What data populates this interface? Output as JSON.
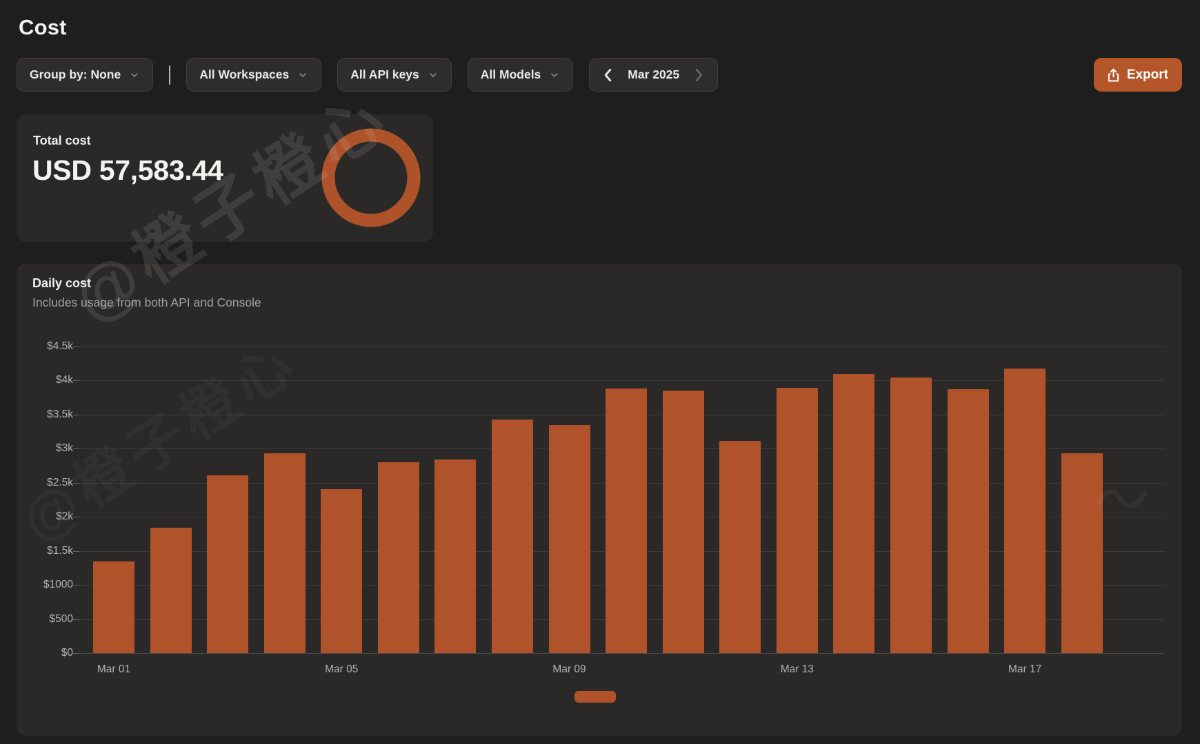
{
  "page": {
    "title": "Cost"
  },
  "toolbar": {
    "group_by": {
      "label": "Group by: None"
    },
    "filters": [
      {
        "label": "All Workspaces"
      },
      {
        "label": "All API keys"
      },
      {
        "label": "All Models"
      }
    ],
    "month_nav": {
      "label": "Mar 2025",
      "prev_enabled": true,
      "next_enabled": false
    },
    "export_label": "Export"
  },
  "total_cost": {
    "label": "Total cost",
    "value": "USD 57,583.44"
  },
  "daily_cost": {
    "title": "Daily cost",
    "subtitle": "Includes usage from both API and Console"
  },
  "watermark": {
    "text": "@橙子橙心"
  },
  "colors": {
    "background": "#1e1e1d",
    "card": "#2a2927",
    "accent_orange": "#b1532a",
    "export_orange": "#b4562a",
    "text_primary": "#f0efec",
    "text_secondary": "#a3a19c",
    "tick_text": "#b3b2ae"
  },
  "chart_data": {
    "type": "bar",
    "title": "Daily cost",
    "categories": [
      "Mar 01",
      "Mar 02",
      "Mar 03",
      "Mar 04",
      "Mar 05",
      "Mar 06",
      "Mar 07",
      "Mar 08",
      "Mar 09",
      "Mar 10",
      "Mar 11",
      "Mar 12",
      "Mar 13",
      "Mar 14",
      "Mar 15",
      "Mar 16",
      "Mar 17",
      "Mar 18"
    ],
    "values": [
      1350,
      1840,
      2610,
      2930,
      2410,
      2800,
      2840,
      3430,
      3350,
      3880,
      3850,
      3110,
      3890,
      4100,
      4050,
      3870,
      4180,
      2930
    ],
    "xlabel": "",
    "ylabel": "",
    "ylim": [
      0,
      4500
    ],
    "y_tick_labels": [
      "$0",
      "$500",
      "$1000",
      "$1.5k",
      "$2k",
      "$2.5k",
      "$3k",
      "$3.5k",
      "$4k",
      "$4.5k"
    ],
    "x_label_indices": [
      0,
      4,
      8,
      12,
      16
    ],
    "x_tick_labels_shown": [
      "Mar 01",
      "Mar 05",
      "Mar 09",
      "Mar 13",
      "Mar 17"
    ],
    "grid": true,
    "legend_position": "bottom-center",
    "bar_color": "#b1532a"
  }
}
